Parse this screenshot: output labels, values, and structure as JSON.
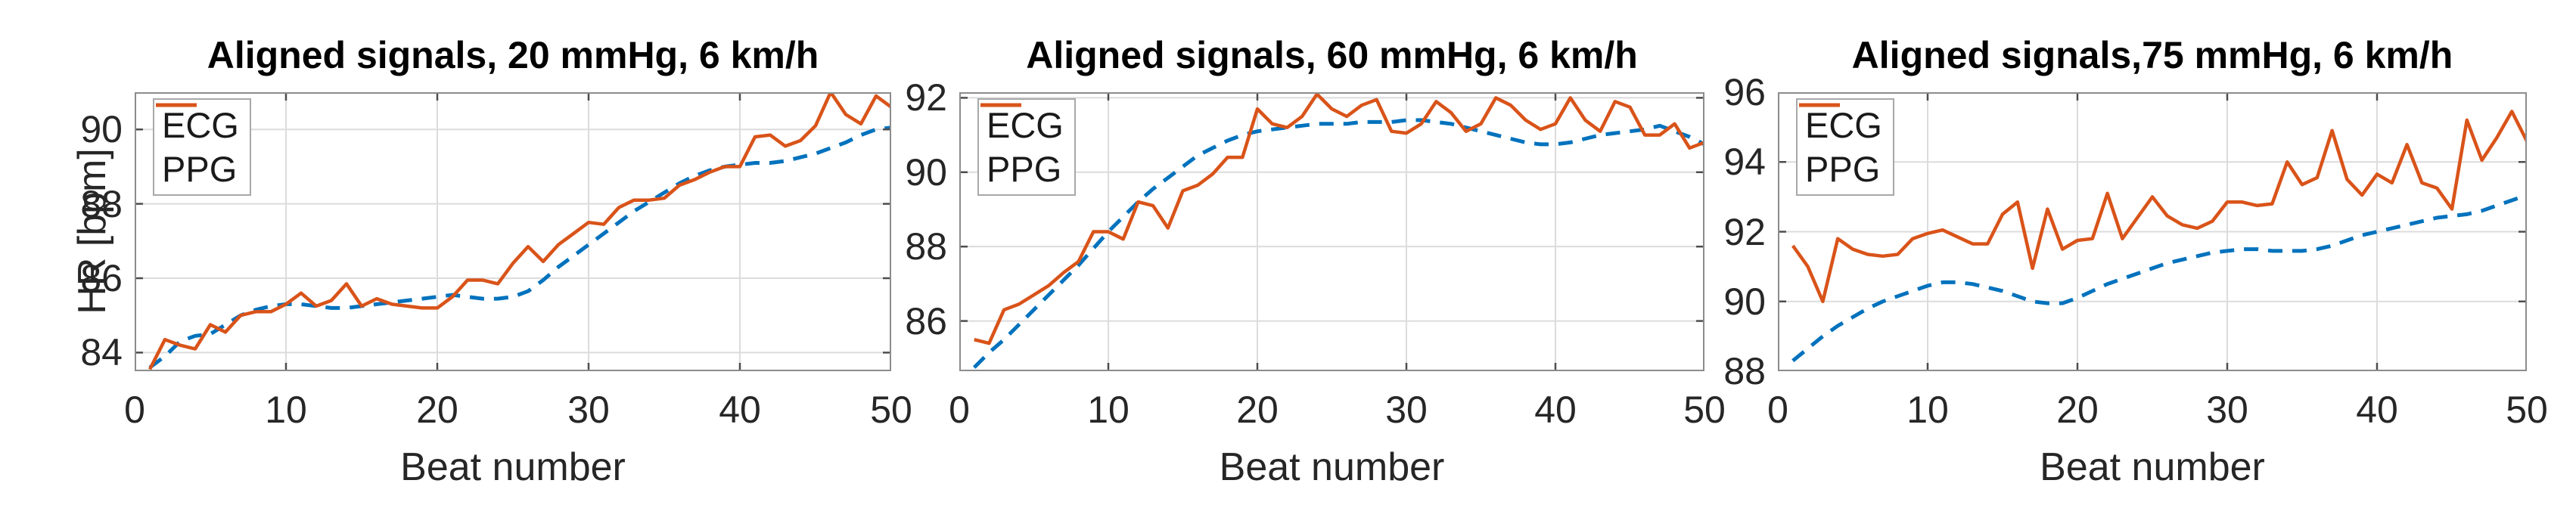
{
  "figure": {
    "xlabel": "Beat number",
    "ylabel": "HR [bpm]"
  },
  "colors": {
    "ecg": "#0072BD",
    "ppg": "#D95319",
    "grid": "#DCDCDC",
    "axis_frame": "#8C8C8C",
    "tick_mark": "#4D4D4D",
    "tick_text": "#262626",
    "title_text": "#000000",
    "background": "#FFFFFF"
  },
  "chart_data": [
    {
      "type": "line",
      "title": "Aligned signals, 20 mmHg, 6 km/h",
      "xlabel": "Beat number",
      "ylabel": "HR [bpm]",
      "x_start": 1,
      "x_step": 1,
      "xlim": [
        0,
        50
      ],
      "ylim": [
        83.5,
        91.0
      ],
      "xticks": [
        0,
        10,
        20,
        30,
        40,
        50
      ],
      "yticks": [
        84,
        86,
        88,
        90
      ],
      "grid": true,
      "legend_position": "top-left",
      "series": [
        {
          "name": "ECG",
          "color": "#0072BD",
          "line_style": "dashed",
          "values": [
            83.6,
            83.9,
            84.3,
            84.45,
            84.5,
            84.75,
            85.0,
            85.15,
            85.25,
            85.3,
            85.3,
            85.25,
            85.2,
            85.2,
            85.25,
            85.3,
            85.35,
            85.4,
            85.45,
            85.5,
            85.55,
            85.5,
            85.45,
            85.45,
            85.5,
            85.65,
            85.95,
            86.3,
            86.6,
            86.9,
            87.2,
            87.5,
            87.8,
            88.05,
            88.3,
            88.55,
            88.75,
            88.9,
            89.0,
            89.05,
            89.1,
            89.1,
            89.15,
            89.25,
            89.35,
            89.5,
            89.65,
            89.85,
            90.0,
            90.05
          ]
        },
        {
          "name": "PPG",
          "color": "#D95319",
          "line_style": "solid",
          "values": [
            83.55,
            84.35,
            84.2,
            84.1,
            84.75,
            84.55,
            85.0,
            85.1,
            85.1,
            85.3,
            85.6,
            85.25,
            85.4,
            85.85,
            85.25,
            85.45,
            85.3,
            85.25,
            85.2,
            85.2,
            85.5,
            85.95,
            85.95,
            85.85,
            86.4,
            86.85,
            86.45,
            86.9,
            87.2,
            87.5,
            87.45,
            87.9,
            88.1,
            88.1,
            88.15,
            88.5,
            88.65,
            88.85,
            89.0,
            89.0,
            89.8,
            89.85,
            89.55,
            89.7,
            90.1,
            91.0,
            90.4,
            90.15,
            90.9,
            90.6
          ]
        }
      ]
    },
    {
      "type": "line",
      "title": "Aligned signals, 60 mmHg, 6 km/h",
      "xlabel": "Beat number",
      "ylabel": "",
      "x_start": 1,
      "x_step": 1,
      "xlim": [
        0,
        50
      ],
      "ylim": [
        84.65,
        92.15
      ],
      "xticks": [
        0,
        10,
        20,
        30,
        40,
        50
      ],
      "yticks": [
        86,
        88,
        90,
        92
      ],
      "grid": true,
      "legend_position": "top-left",
      "series": [
        {
          "name": "ECG",
          "color": "#0072BD",
          "line_style": "dashed",
          "values": [
            84.75,
            85.15,
            85.5,
            85.9,
            86.3,
            86.7,
            87.1,
            87.5,
            87.95,
            88.4,
            88.8,
            89.2,
            89.55,
            89.85,
            90.15,
            90.45,
            90.65,
            90.85,
            91.0,
            91.1,
            91.15,
            91.2,
            91.25,
            91.3,
            91.3,
            91.3,
            91.35,
            91.35,
            91.35,
            91.4,
            91.4,
            91.35,
            91.3,
            91.2,
            91.1,
            91.0,
            90.9,
            90.8,
            90.75,
            90.75,
            90.8,
            90.9,
            91.0,
            91.05,
            91.1,
            91.15,
            91.25,
            91.1,
            90.95,
            90.75
          ]
        },
        {
          "name": "PPG",
          "color": "#D95319",
          "line_style": "solid",
          "values": [
            85.5,
            85.4,
            86.3,
            86.45,
            86.7,
            86.95,
            87.3,
            87.6,
            88.4,
            88.4,
            88.2,
            89.2,
            89.1,
            88.5,
            89.5,
            89.65,
            89.95,
            90.4,
            90.4,
            91.7,
            91.3,
            91.2,
            91.5,
            92.1,
            91.7,
            91.5,
            91.8,
            91.95,
            91.1,
            91.05,
            91.3,
            91.9,
            91.6,
            91.1,
            91.3,
            92.0,
            91.8,
            91.4,
            91.15,
            91.3,
            92.0,
            91.4,
            91.1,
            91.9,
            91.75,
            91.0,
            91.0,
            91.3,
            90.65,
            90.8
          ]
        }
      ]
    },
    {
      "type": "line",
      "title": "Aligned signals,75 mmHg, 6 km/h",
      "xlabel": "Beat number",
      "ylabel": "",
      "x_start": 1,
      "x_step": 1,
      "xlim": [
        0,
        50
      ],
      "ylim": [
        88,
        96
      ],
      "xticks": [
        0,
        10,
        20,
        30,
        40,
        50
      ],
      "yticks": [
        88,
        90,
        92,
        94,
        96
      ],
      "grid": true,
      "legend_position": "top-left",
      "series": [
        {
          "name": "ECG",
          "color": "#0072BD",
          "line_style": "dashed",
          "values": [
            88.3,
            88.65,
            89.0,
            89.3,
            89.55,
            89.8,
            90.0,
            90.15,
            90.3,
            90.45,
            90.55,
            90.55,
            90.5,
            90.4,
            90.3,
            90.15,
            90.0,
            89.95,
            89.95,
            90.1,
            90.3,
            90.5,
            90.65,
            90.8,
            90.95,
            91.1,
            91.2,
            91.3,
            91.4,
            91.45,
            91.5,
            91.5,
            91.45,
            91.45,
            91.45,
            91.5,
            91.6,
            91.75,
            91.9,
            92.0,
            92.1,
            92.2,
            92.3,
            92.4,
            92.45,
            92.5,
            92.6,
            92.75,
            92.9,
            93.05
          ]
        },
        {
          "name": "PPG",
          "color": "#D95319",
          "line_style": "solid",
          "values": [
            91.6,
            91.0,
            90.0,
            91.8,
            91.5,
            91.35,
            91.3,
            91.35,
            91.8,
            91.95,
            92.05,
            91.85,
            91.65,
            91.65,
            92.5,
            92.85,
            90.95,
            92.65,
            91.5,
            91.75,
            91.8,
            93.1,
            91.8,
            92.4,
            93.0,
            92.45,
            92.2,
            92.1,
            92.3,
            92.85,
            92.85,
            92.75,
            92.8,
            94.0,
            93.35,
            93.55,
            94.9,
            93.5,
            93.05,
            93.65,
            93.4,
            94.5,
            93.4,
            93.25,
            92.65,
            95.2,
            94.05,
            94.7,
            95.45,
            94.6
          ]
        }
      ]
    }
  ]
}
